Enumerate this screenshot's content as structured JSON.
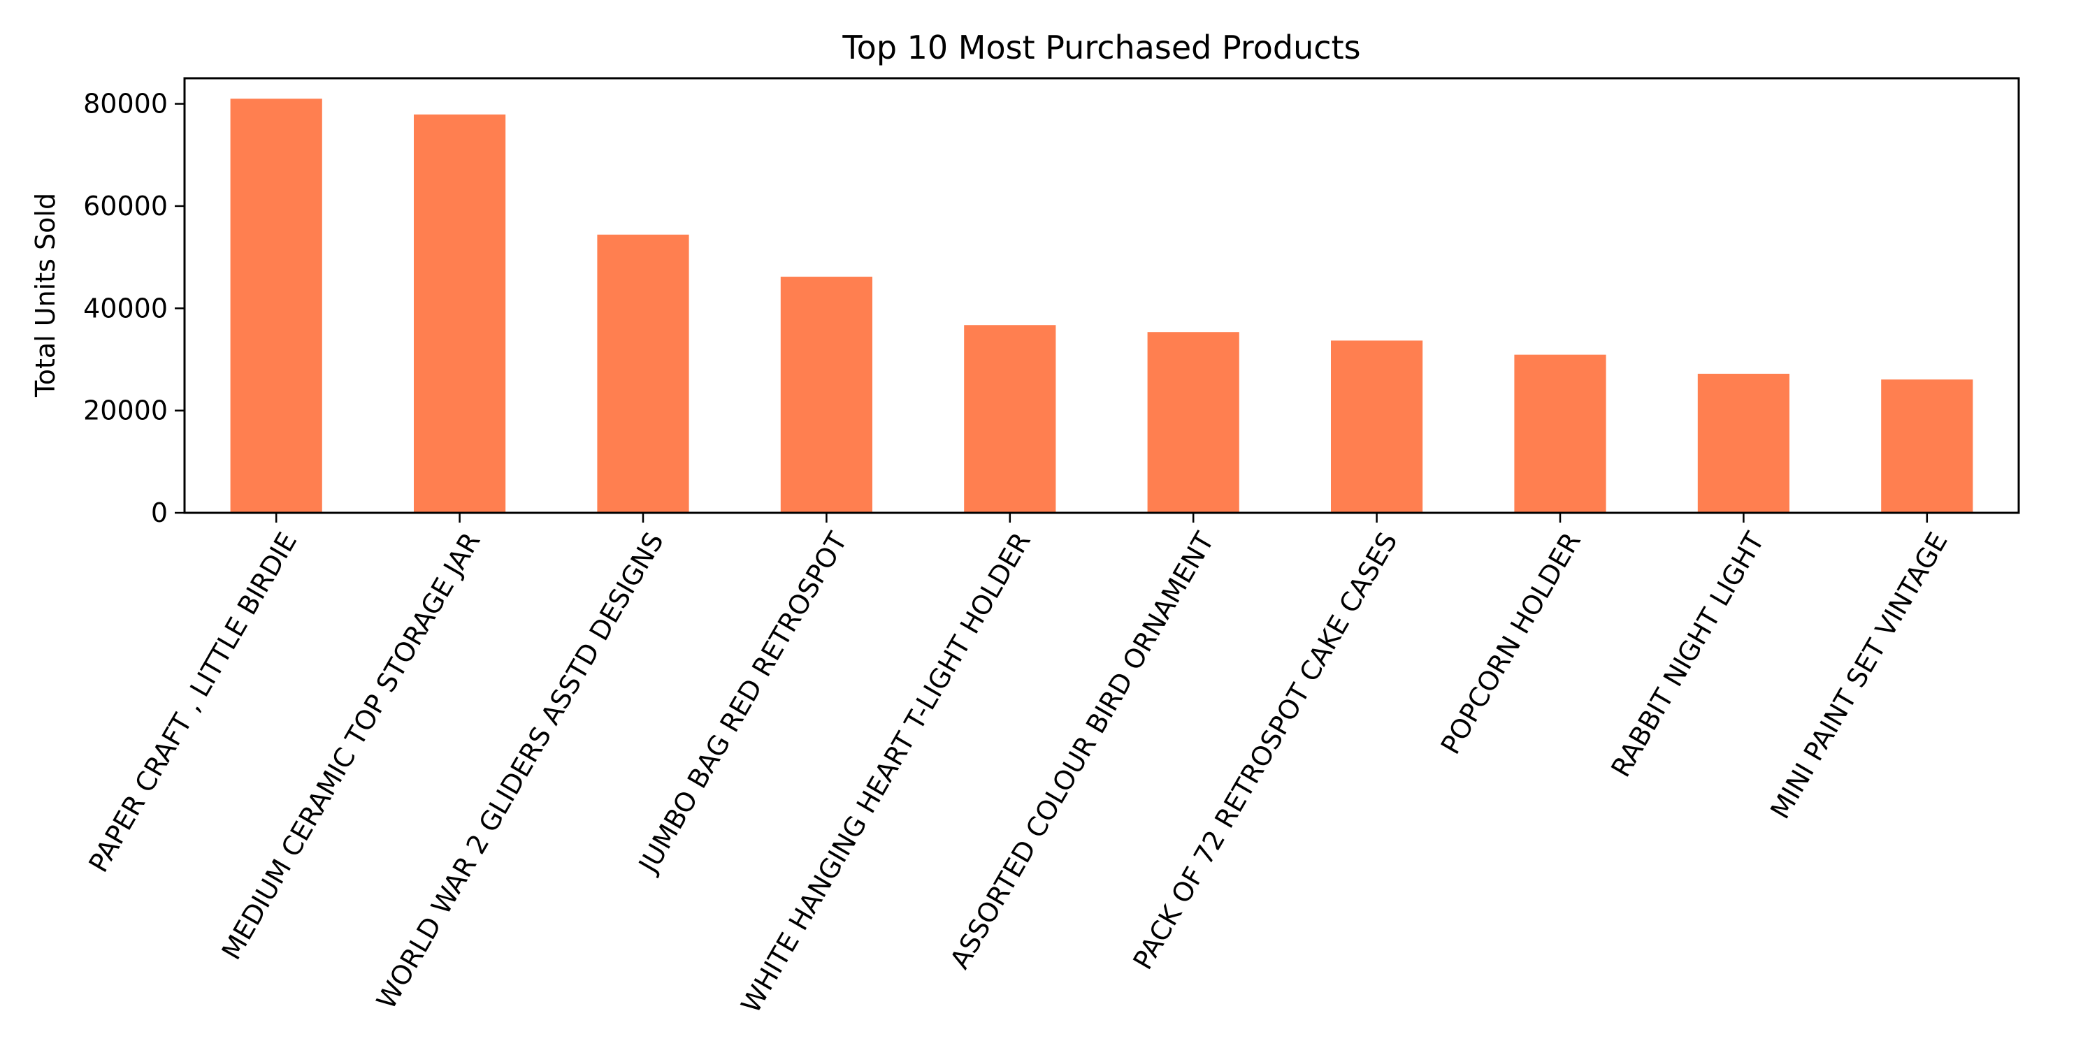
{
  "chart_data": {
    "type": "bar",
    "title": "Top 10 Most Purchased Products",
    "xlabel": "",
    "ylabel": "Total Units Sold",
    "categories": [
      "PAPER CRAFT , LITTLE BIRDIE",
      "MEDIUM CERAMIC TOP STORAGE JAR",
      "WORLD WAR 2 GLIDERS ASSTD DESIGNS",
      "JUMBO BAG RED RETROSPOT",
      "WHITE HANGING HEART T-LIGHT HOLDER",
      "ASSORTED COLOUR BIRD ORNAMENT",
      "PACK OF 72 RETROSPOT CAKE CASES",
      "POPCORN HOLDER",
      "RABBIT NIGHT LIGHT",
      "MINI PAINT SET VINTAGE"
    ],
    "values": [
      80995,
      77916,
      54415,
      46181,
      36725,
      35362,
      33693,
      30931,
      27202,
      26076
    ],
    "ylim": [
      0,
      85000
    ],
    "yticks": [
      0,
      20000,
      40000,
      60000,
      80000
    ],
    "grid": false,
    "legend": "none",
    "bar_color": "#ff7f50",
    "axis_color": "#000000"
  }
}
